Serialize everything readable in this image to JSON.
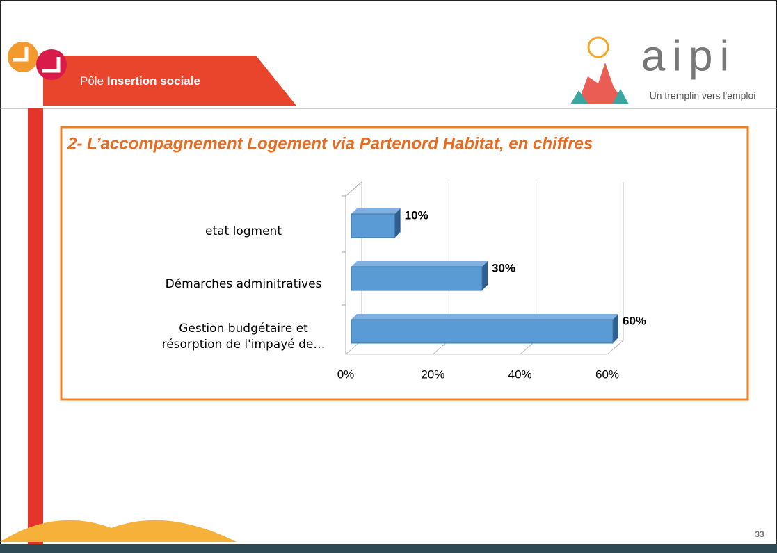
{
  "header": {
    "pole_prefix": "Pôle",
    "pole_name": "Insertion sociale"
  },
  "logo": {
    "name": "aipi",
    "tagline": "Un tremplin vers l'emploi"
  },
  "page_number": 33,
  "chart_data": {
    "type": "bar",
    "orientation": "horizontal",
    "title": "2- L’accompagnement Logement via Partenord Habitat, en chiffres",
    "categories": [
      "etat logment",
      "Démarches adminitratives",
      "Gestion budgétaire et résorption de l'impayé de…"
    ],
    "values": [
      10,
      30,
      60
    ],
    "value_labels": [
      "10%",
      "30%",
      "60%"
    ],
    "color": "#5b9bd5",
    "xlim": [
      0,
      60
    ],
    "xticks": [
      {
        "value": 0,
        "label": "0%"
      },
      {
        "value": 20,
        "label": "20%"
      },
      {
        "value": 40,
        "label": "40%"
      },
      {
        "value": 60,
        "label": "60%"
      }
    ],
    "grid": true
  }
}
